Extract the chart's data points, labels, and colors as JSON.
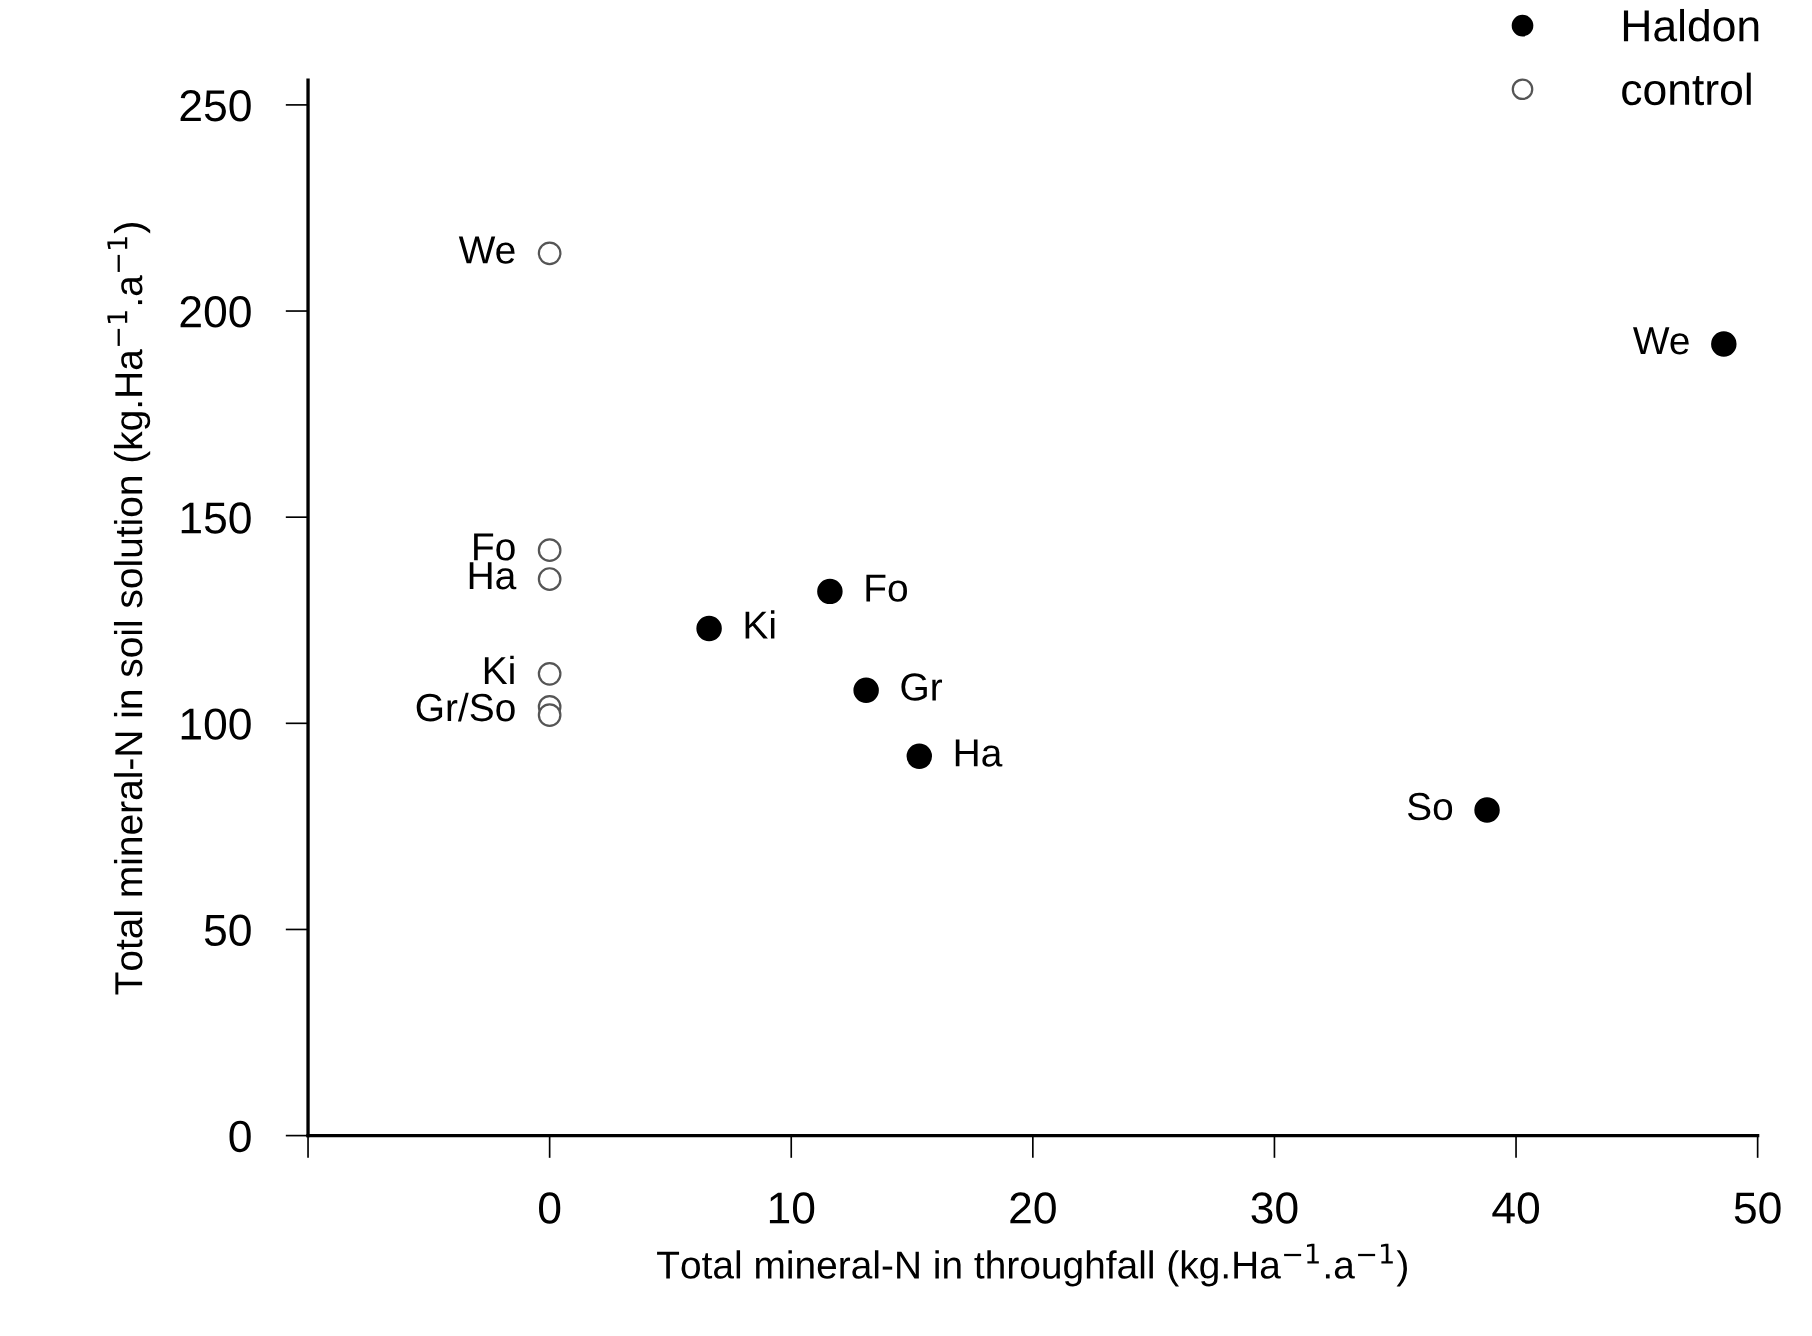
{
  "chart_data": {
    "type": "scatter",
    "xlabel": "Total mineral-N in throughfall (kg.Ha$^{−1}$.a$^{−1}$)",
    "ylabel": "Total mineral-N in soil solution (kg.Ha$^{−1}$.a$^{−1}$)",
    "xlim": [
      -10,
      50
    ],
    "xticks": [
      {
        "value": -10,
        "label": null
      },
      0,
      10,
      20,
      30,
      40,
      50
    ],
    "ylim": [
      0,
      256
    ],
    "yticks": [
      0,
      50,
      100,
      150,
      200,
      250
    ],
    "grid": false,
    "legend": "top right",
    "marker": "circle",
    "series": [
      {
        "name": "Haldon",
        "color": "#000000",
        "x": [
          6.6,
          11.6,
          13.1,
          15.3,
          38.8,
          48.6
        ],
        "values": [
          123,
          132,
          108,
          92,
          79,
          192
        ]
      },
      {
        "name": "control",
        "color": "#ffffff",
        "x": [
          0,
          0,
          0,
          0,
          0,
          0
        ],
        "values": [
          214,
          142,
          135,
          112,
          104,
          102
        ]
      }
    ],
    "annotations": [
      {
        "text": "Ki",
        "x": 6.6,
        "y": 123
      },
      {
        "text": "Fo",
        "x": 11.6,
        "y": 132
      },
      {
        "text": "Gr",
        "x": 13.1,
        "y": 108
      },
      {
        "text": "Ha",
        "x": 15.3,
        "y": 92
      },
      {
        "text": "So",
        "x": 38.8,
        "y": 79
      },
      {
        "text": "We",
        "x": 48.6,
        "y": 192
      },
      {
        "text": "We",
        "x": 0,
        "y": 214
      },
      {
        "text": "Fo",
        "x": 0,
        "y": 142
      },
      {
        "text": "Ha",
        "x": 0,
        "y": 135
      },
      {
        "text": "Ki",
        "x": 0,
        "y": 112
      },
      {
        "text": "Gr/So",
        "x": 0,
        "y": 103
      }
    ]
  }
}
